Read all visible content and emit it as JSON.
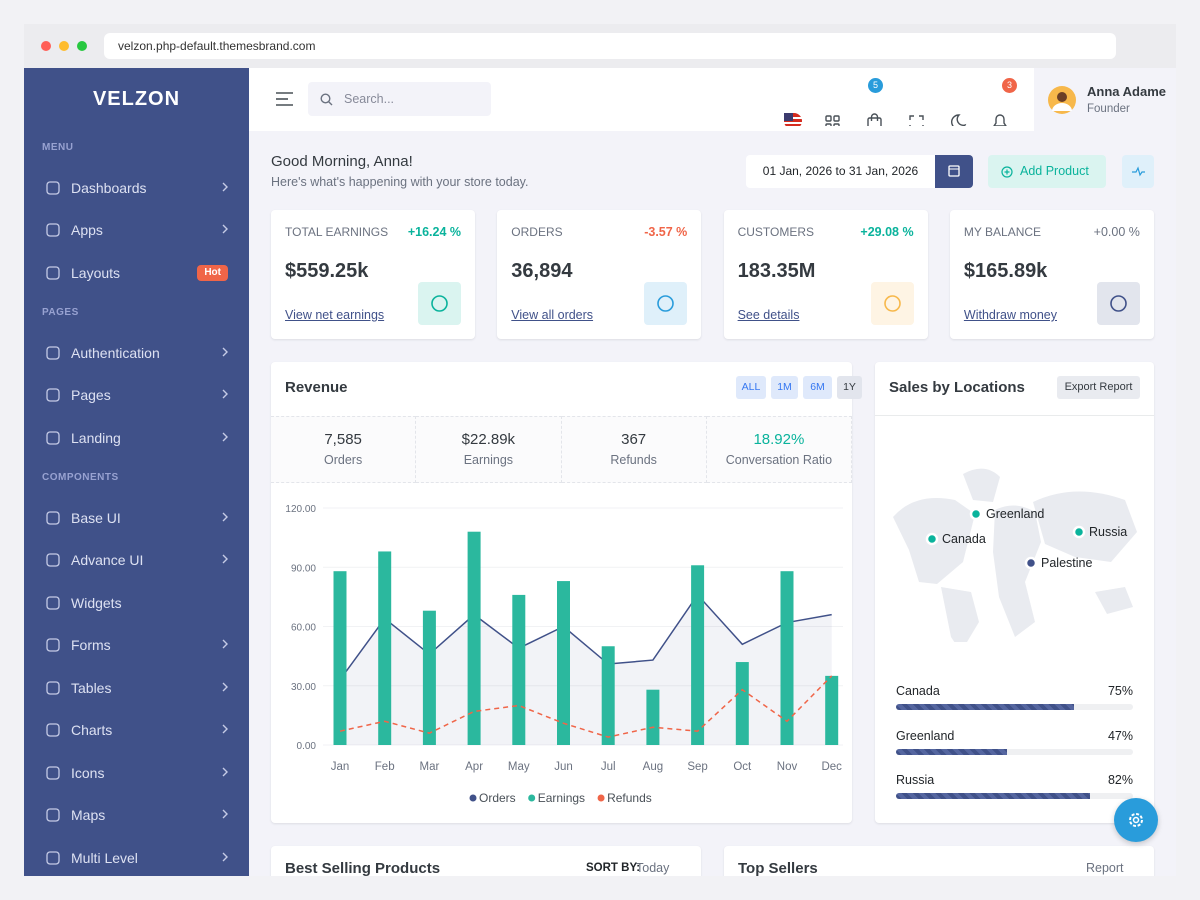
{
  "browser": {
    "url": "velzon.php-default.themesbrand.com"
  },
  "sidebar": {
    "logo": "VELZON",
    "sections": [
      {
        "title": "MENU",
        "items": [
          {
            "label": "Dashboards"
          },
          {
            "label": "Apps"
          },
          {
            "label": "Layouts",
            "badge": "Hot"
          }
        ]
      },
      {
        "title": "PAGES",
        "items": [
          {
            "label": "Authentication"
          },
          {
            "label": "Pages"
          },
          {
            "label": "Landing"
          }
        ]
      },
      {
        "title": "COMPONENTS",
        "items": [
          {
            "label": "Base UI"
          },
          {
            "label": "Advance UI"
          },
          {
            "label": "Widgets"
          },
          {
            "label": "Forms"
          },
          {
            "label": "Tables"
          },
          {
            "label": "Charts"
          },
          {
            "label": "Icons"
          },
          {
            "label": "Maps"
          },
          {
            "label": "Multi Level"
          }
        ]
      }
    ]
  },
  "topbar": {
    "search_placeholder": "Search...",
    "cart_badge": "5",
    "notification_badge": "3",
    "user": {
      "name": "Anna Adame",
      "role": "Founder"
    }
  },
  "greeting": {
    "title": "Good Morning, Anna!",
    "subtitle": "Here's what's happening with your store today.",
    "date_range": "01 Jan, 2026 to 31 Jan, 2026",
    "add_button": "Add Product"
  },
  "kpis": [
    {
      "label": "TOTAL EARNINGS",
      "change": "+16.24 %",
      "value": "$559.25k",
      "link": "View net earnings"
    },
    {
      "label": "ORDERS",
      "change": "-3.57 %",
      "value": "36,894",
      "link": "View all orders"
    },
    {
      "label": "CUSTOMERS",
      "change": "+29.08 %",
      "value": "183.35M",
      "link": "See details"
    },
    {
      "label": "MY BALANCE",
      "change": "+0.00 %",
      "value": "$165.89k",
      "link": "Withdraw money"
    }
  ],
  "revenue": {
    "title": "Revenue",
    "filters": [
      "ALL",
      "1M",
      "6M",
      "1Y"
    ],
    "stats": [
      {
        "value": "7,585",
        "label": "Orders"
      },
      {
        "value": "$22.89k",
        "label": "Earnings"
      },
      {
        "value": "367",
        "label": "Refunds"
      },
      {
        "value": "18.92%",
        "label": "Conversation Ratio"
      }
    ]
  },
  "chart_data": {
    "type": "combo",
    "categories": [
      "Jan",
      "Feb",
      "Mar",
      "Apr",
      "May",
      "Jun",
      "Jul",
      "Aug",
      "Sep",
      "Oct",
      "Nov",
      "Dec"
    ],
    "ylim": [
      0,
      120
    ],
    "yticks": [
      {
        "value": 0,
        "label": "0.00"
      },
      {
        "value": 30,
        "label": "30.00"
      },
      {
        "value": 60,
        "label": "60.00"
      },
      {
        "value": 90,
        "label": "90.00"
      },
      {
        "value": 120,
        "label": "120.00"
      }
    ],
    "grid": true,
    "series": [
      {
        "name": "Orders",
        "type": "area",
        "color": "#405189",
        "values": [
          33,
          64,
          46,
          66,
          49,
          60,
          41,
          43,
          76,
          51,
          62,
          66
        ]
      },
      {
        "name": "Earnings",
        "type": "bar",
        "color": "#2bb89e",
        "values": [
          88,
          98,
          68,
          108,
          76,
          83,
          50,
          28,
          91,
          42,
          88,
          35
        ]
      },
      {
        "name": "Refunds",
        "type": "line",
        "dashed": true,
        "color": "#f06548",
        "values": [
          7,
          12,
          6,
          17,
          20,
          11,
          4,
          9,
          7,
          28,
          12,
          35
        ]
      }
    ]
  },
  "locations": {
    "title": "Sales by Locations",
    "button": "Export Report",
    "markers": [
      "Greenland",
      "Canada",
      "Russia",
      "Palestine"
    ],
    "progress": [
      {
        "name": "Canada",
        "value": 75,
        "label": "75%"
      },
      {
        "name": "Greenland",
        "value": 47,
        "label": "47%"
      },
      {
        "name": "Russia",
        "value": 82,
        "label": "82%"
      }
    ]
  },
  "bottom": {
    "best_selling": {
      "title": "Best Selling Products",
      "sort_label": "SORT BY:",
      "sort_value": "Today"
    },
    "top_sellers": {
      "title": "Top Sellers",
      "menu": "Report"
    }
  }
}
